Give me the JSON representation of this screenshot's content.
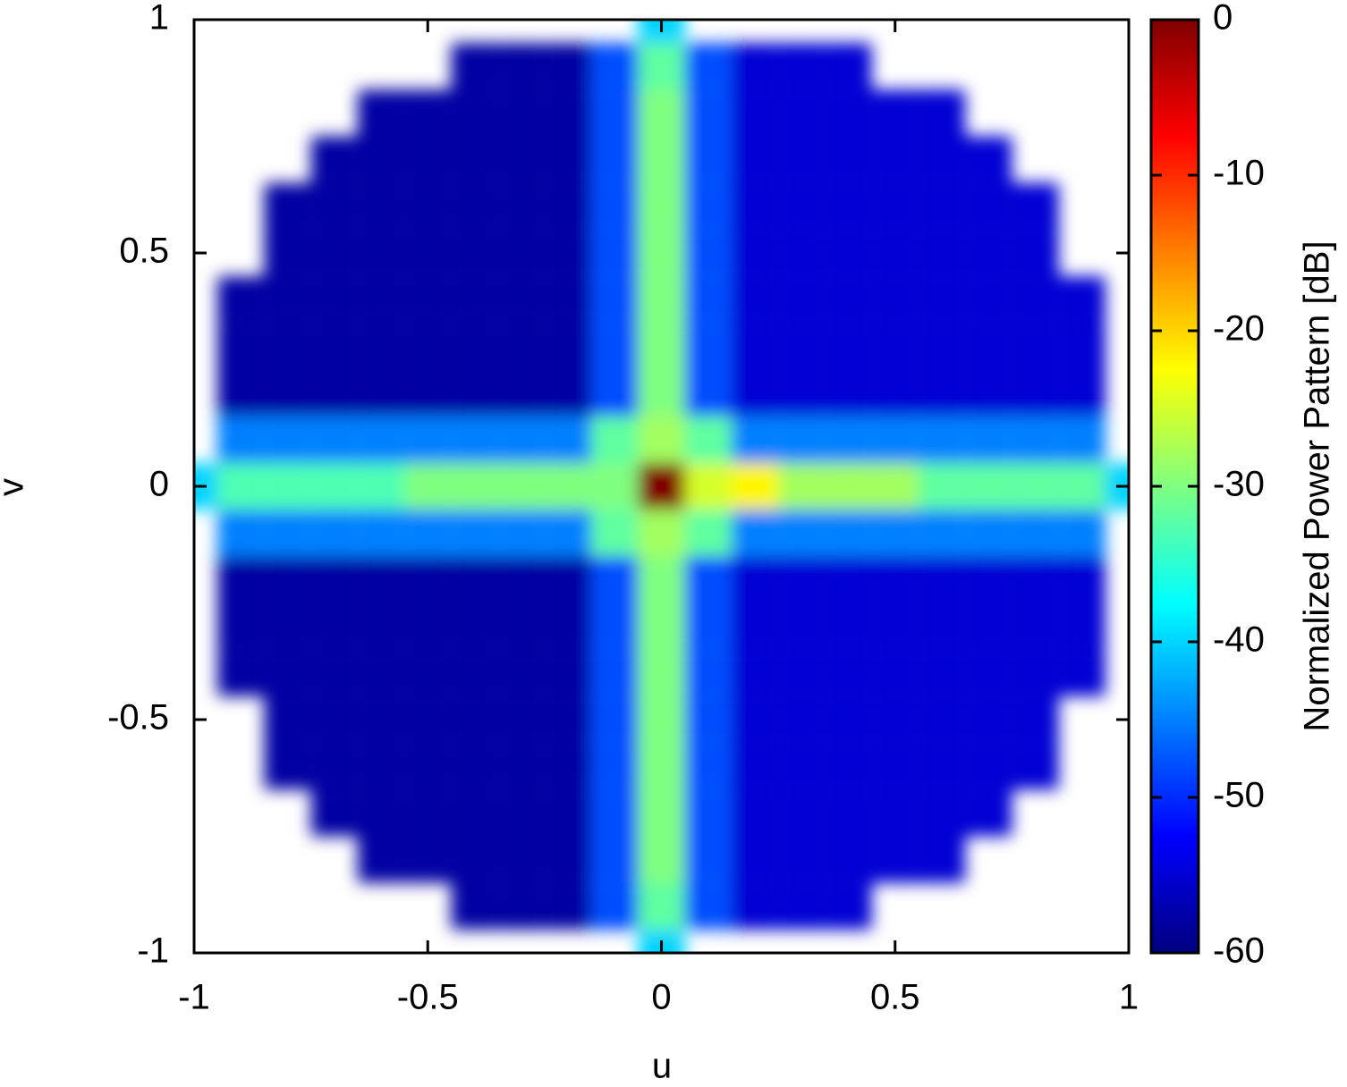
{
  "chart_data": {
    "type": "heatmap",
    "xlabel": "u",
    "ylabel": "v",
    "colorbar_label": "Normalized Power Pattern [dB]",
    "colormap": "jet",
    "x": [
      -1,
      -0.9,
      -0.8,
      -0.7,
      -0.6,
      -0.5,
      -0.4,
      -0.3,
      -0.2,
      -0.1,
      0,
      0.1,
      0.2,
      0.3,
      0.4,
      0.5,
      0.6,
      0.7,
      0.8,
      0.9,
      1
    ],
    "y": [
      -1,
      -0.9,
      -0.8,
      -0.7,
      -0.6,
      -0.5,
      -0.4,
      -0.3,
      -0.2,
      -0.1,
      0,
      0.1,
      0.2,
      0.3,
      0.4,
      0.5,
      0.6,
      0.7,
      0.8,
      0.9,
      1
    ],
    "z": [
      [
        null,
        null,
        null,
        null,
        null,
        null,
        null,
        null,
        null,
        null,
        -40,
        null,
        null,
        null,
        null,
        null,
        null,
        null,
        null,
        null,
        null
      ],
      [
        null,
        null,
        null,
        null,
        null,
        null,
        -58,
        -58,
        -58,
        -48,
        -32,
        -48,
        -55,
        -55,
        -55,
        null,
        null,
        null,
        null,
        null,
        null
      ],
      [
        null,
        null,
        null,
        null,
        -58,
        -58,
        -58,
        -58,
        -58,
        -48,
        -30,
        -48,
        -55,
        -55,
        -55,
        -55,
        -55,
        null,
        null,
        null,
        null
      ],
      [
        null,
        null,
        null,
        -58,
        -58,
        -58,
        -58,
        -58,
        -58,
        -48,
        -30,
        -48,
        -55,
        -55,
        -55,
        -55,
        -55,
        -55,
        null,
        null,
        null
      ],
      [
        null,
        null,
        -58,
        -58,
        -58,
        -58,
        -58,
        -58,
        -58,
        -48,
        -30,
        -48,
        -55,
        -55,
        -55,
        -55,
        -55,
        -55,
        -55,
        null,
        null
      ],
      [
        null,
        null,
        -58,
        -58,
        -58,
        -58,
        -58,
        -58,
        -58,
        -48,
        -30,
        -48,
        -55,
        -55,
        -55,
        -55,
        -55,
        -55,
        -55,
        null,
        null
      ],
      [
        null,
        -58,
        -58,
        -58,
        -58,
        -58,
        -58,
        -58,
        -58,
        -48,
        -30,
        -48,
        -55,
        -55,
        -55,
        -55,
        -55,
        -55,
        -55,
        -55,
        null
      ],
      [
        null,
        -58,
        -58,
        -58,
        -58,
        -58,
        -58,
        -58,
        -58,
        -48,
        -30,
        -48,
        -55,
        -55,
        -55,
        -55,
        -55,
        -55,
        -55,
        -55,
        null
      ],
      [
        null,
        -58,
        -58,
        -58,
        -58,
        -58,
        -58,
        -58,
        -58,
        -48,
        -30,
        -48,
        -55,
        -55,
        -55,
        -55,
        -55,
        -55,
        -55,
        -55,
        null
      ],
      [
        null,
        -45,
        -45,
        -45,
        -45,
        -45,
        -45,
        -45,
        -45,
        -32,
        -28,
        -32,
        -45,
        -45,
        -45,
        -45,
        -45,
        -45,
        -45,
        -45,
        null
      ],
      [
        -40,
        -33,
        -33,
        -33,
        -33,
        -30,
        -30,
        -30,
        -30,
        -30,
        0,
        -25,
        -22,
        -28,
        -28,
        -28,
        -32,
        -32,
        -32,
        -32,
        -40
      ],
      [
        null,
        -45,
        -45,
        -45,
        -45,
        -45,
        -45,
        -45,
        -45,
        -32,
        -28,
        -32,
        -45,
        -45,
        -45,
        -45,
        -45,
        -45,
        -45,
        -45,
        null
      ],
      [
        null,
        -58,
        -58,
        -58,
        -58,
        -58,
        -58,
        -58,
        -58,
        -48,
        -30,
        -48,
        -55,
        -55,
        -55,
        -55,
        -55,
        -55,
        -55,
        -55,
        null
      ],
      [
        null,
        -58,
        -58,
        -58,
        -58,
        -58,
        -58,
        -58,
        -58,
        -48,
        -30,
        -48,
        -55,
        -55,
        -55,
        -55,
        -55,
        -55,
        -55,
        -55,
        null
      ],
      [
        null,
        -58,
        -58,
        -58,
        -58,
        -58,
        -58,
        -58,
        -58,
        -48,
        -30,
        -48,
        -55,
        -55,
        -55,
        -55,
        -55,
        -55,
        -55,
        -55,
        null
      ],
      [
        null,
        null,
        -58,
        -58,
        -58,
        -58,
        -58,
        -58,
        -58,
        -48,
        -30,
        -48,
        -55,
        -55,
        -55,
        -55,
        -55,
        -55,
        -55,
        null,
        null
      ],
      [
        null,
        null,
        -58,
        -58,
        -58,
        -58,
        -58,
        -58,
        -58,
        -48,
        -30,
        -48,
        -55,
        -55,
        -55,
        -55,
        -55,
        -55,
        -55,
        null,
        null
      ],
      [
        null,
        null,
        null,
        -58,
        -58,
        -58,
        -58,
        -58,
        -58,
        -48,
        -30,
        -48,
        -55,
        -55,
        -55,
        -55,
        -55,
        -55,
        null,
        null,
        null
      ],
      [
        null,
        null,
        null,
        null,
        -58,
        -58,
        -58,
        -58,
        -58,
        -48,
        -30,
        -48,
        -55,
        -55,
        -55,
        -55,
        -55,
        null,
        null,
        null,
        null
      ],
      [
        null,
        null,
        null,
        null,
        null,
        null,
        -58,
        -58,
        -58,
        -48,
        -32,
        -48,
        -55,
        -55,
        -55,
        null,
        null,
        null,
        null,
        null,
        null
      ],
      [
        null,
        null,
        null,
        null,
        null,
        null,
        null,
        null,
        null,
        null,
        -40,
        null,
        null,
        null,
        null,
        null,
        null,
        null,
        null,
        null,
        null
      ]
    ],
    "xlim": [
      -1,
      1
    ],
    "ylim": [
      -1,
      1
    ],
    "xticks": [
      -1,
      -0.5,
      0,
      0.5,
      1
    ],
    "yticks": [
      -1,
      -0.5,
      0,
      0.5,
      1
    ],
    "zlim": [
      -60,
      0
    ],
    "zticks": [
      -60,
      -50,
      -40,
      -30,
      -20,
      -10,
      0
    ]
  }
}
